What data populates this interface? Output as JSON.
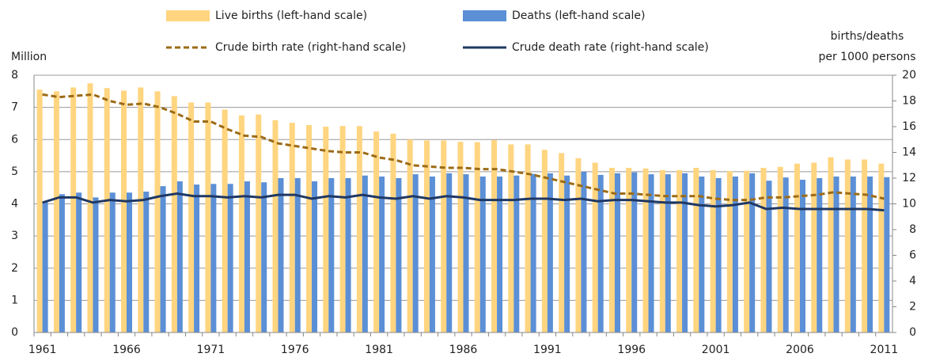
{
  "chart_data": {
    "type": "bar",
    "y_label": "Million",
    "y2_label": [
      "births/deaths",
      "per 1000 persons"
    ],
    "categories": [
      "1961",
      null,
      null,
      null,
      null,
      "1966",
      null,
      null,
      null,
      null,
      "1971",
      null,
      null,
      null,
      null,
      "1976",
      null,
      null,
      null,
      null,
      "1981",
      null,
      null,
      null,
      null,
      "1986",
      null,
      null,
      null,
      null,
      "1991",
      null,
      null,
      null,
      null,
      "1996",
      null,
      null,
      null,
      null,
      "2001",
      null,
      null,
      null,
      null,
      "2006",
      null,
      null,
      null,
      null,
      "2011"
    ],
    "ylim": [
      0,
      8
    ],
    "yticks": [
      0,
      1,
      2,
      3,
      4,
      5,
      6,
      7,
      8
    ],
    "y2lim": [
      0,
      20
    ],
    "y2ticks": [
      0,
      2,
      4,
      6,
      8,
      10,
      12,
      14,
      16,
      18,
      20
    ],
    "grid": true,
    "series": [
      {
        "name": "Live births (left-hand scale)",
        "type": "bar",
        "color": "#ffd580",
        "values": [
          7.55,
          7.5,
          7.62,
          7.75,
          7.6,
          7.52,
          7.62,
          7.5,
          7.35,
          7.15,
          7.15,
          6.93,
          6.75,
          6.78,
          6.6,
          6.52,
          6.45,
          6.4,
          6.42,
          6.42,
          6.25,
          6.18,
          6.0,
          5.97,
          5.97,
          5.93,
          5.92,
          5.98,
          5.85,
          5.85,
          5.68,
          5.58,
          5.42,
          5.28,
          5.12,
          5.12,
          5.1,
          5.05,
          5.05,
          5.12,
          5.05,
          5.02,
          5.03,
          5.12,
          5.15,
          5.25,
          5.28,
          5.45,
          5.38,
          5.38,
          5.25
        ]
      },
      {
        "name": "Deaths (left-hand scale)",
        "type": "bar",
        "color": "#5b8fd6",
        "values": [
          4.05,
          4.3,
          4.35,
          4.2,
          4.35,
          4.35,
          4.38,
          4.55,
          4.7,
          4.6,
          4.62,
          4.62,
          4.7,
          4.67,
          4.8,
          4.8,
          4.7,
          4.8,
          4.8,
          4.88,
          4.85,
          4.8,
          4.92,
          4.85,
          4.95,
          4.92,
          4.85,
          4.85,
          4.88,
          4.93,
          4.95,
          4.88,
          5.0,
          4.9,
          4.95,
          4.98,
          4.92,
          4.92,
          4.95,
          4.85,
          4.8,
          4.85,
          4.95,
          4.72,
          4.82,
          4.75,
          4.8,
          4.85,
          4.85,
          4.85,
          4.83
        ]
      },
      {
        "name": "Crude birth rate (right-hand scale)",
        "type": "line",
        "axis": "y2",
        "dashed": true,
        "color": "#9c6b16",
        "values": [
          18.5,
          18.3,
          18.4,
          18.5,
          18.0,
          17.7,
          17.8,
          17.5,
          17.0,
          16.4,
          16.4,
          15.8,
          15.3,
          15.2,
          14.7,
          14.5,
          14.3,
          14.1,
          14.0,
          14.0,
          13.6,
          13.4,
          13.0,
          12.9,
          12.8,
          12.8,
          12.7,
          12.7,
          12.5,
          12.3,
          12.0,
          11.7,
          11.4,
          11.1,
          10.8,
          10.8,
          10.7,
          10.6,
          10.6,
          10.6,
          10.4,
          10.3,
          10.3,
          10.5,
          10.5,
          10.6,
          10.7,
          10.9,
          10.8,
          10.7,
          10.4
        ]
      },
      {
        "name": "Crude death rate (right-hand scale)",
        "type": "line",
        "axis": "y2",
        "dashed": false,
        "color": "#1f3864",
        "values": [
          10.1,
          10.5,
          10.5,
          10.1,
          10.3,
          10.2,
          10.3,
          10.6,
          10.8,
          10.6,
          10.6,
          10.5,
          10.6,
          10.5,
          10.7,
          10.7,
          10.4,
          10.6,
          10.5,
          10.7,
          10.5,
          10.4,
          10.6,
          10.4,
          10.6,
          10.5,
          10.3,
          10.3,
          10.3,
          10.4,
          10.4,
          10.3,
          10.4,
          10.2,
          10.3,
          10.3,
          10.2,
          10.1,
          10.1,
          9.9,
          9.8,
          9.9,
          10.1,
          9.6,
          9.7,
          9.6,
          9.6,
          9.6,
          9.6,
          9.6,
          9.5
        ]
      }
    ]
  }
}
